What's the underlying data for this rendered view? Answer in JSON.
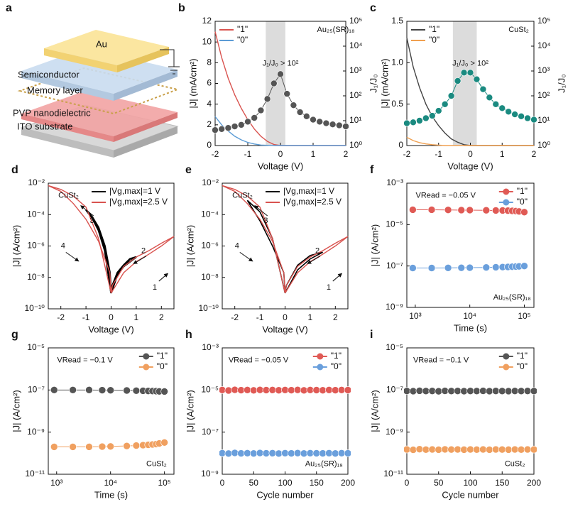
{
  "diagram": {
    "label": "a",
    "layers": [
      "Au",
      "Semiconductor",
      "Memory layer",
      "PVP nanodielectric",
      "ITO substrate"
    ]
  },
  "chart_data": [
    {
      "type": "line",
      "label": "b",
      "xlabel": "Voltage (V)",
      "ylabel": "|J| (mA/cm²)",
      "y2label": "J₁/J₀",
      "x": [
        -2,
        -1.8,
        -1.6,
        -1.4,
        -1.2,
        -1,
        -0.8,
        -0.6,
        -0.4,
        -0.2,
        0,
        0.2,
        0.4,
        0.6,
        0.8,
        1,
        1.2,
        1.4,
        1.6,
        1.8,
        2
      ],
      "xlim": [
        -2,
        2
      ],
      "xticks": [
        -2,
        -1,
        0,
        1,
        2
      ],
      "ylim": [
        0,
        12
      ],
      "yticks": [
        0,
        2,
        4,
        6,
        8,
        10,
        12
      ],
      "y2lim": [
        1,
        100000
      ],
      "y2scale": "log",
      "y2ticks": [
        {
          "value": 1,
          "label": "10⁰"
        },
        {
          "value": 10,
          "label": "10¹"
        },
        {
          "value": 100,
          "label": "10²"
        },
        {
          "value": 1000,
          "label": "10³"
        },
        {
          "value": 10000,
          "label": "10⁴"
        },
        {
          "value": 100000,
          "label": "10⁵"
        }
      ],
      "highlight": [
        -0.45,
        0.15
      ],
      "legend": "upper left",
      "annotations": [
        "J₁/J₀ > 10²",
        "Au₂₅(SR)₁₈"
      ],
      "series": [
        {
          "name": "\"1\"",
          "color": "#d9534f",
          "values": [
            11,
            8.5,
            6.5,
            4.9,
            3.6,
            2.5,
            1.6,
            0.9,
            0.4,
            0.1,
            0,
            0,
            0,
            0,
            0,
            0,
            0,
            0,
            0,
            0,
            0
          ]
        },
        {
          "name": "\"0\"",
          "color": "#5b9bd5",
          "values": [
            2.8,
            2,
            1.4,
            0.9,
            0.55,
            0.3,
            0.15,
            0.05,
            0.02,
            0,
            0,
            0,
            0,
            0,
            0,
            0,
            0,
            0,
            0,
            0,
            0
          ]
        },
        {
          "color": "#555555",
          "marker": true,
          "axis": "y2",
          "values": [
            4.2,
            4.6,
            5.1,
            5.9,
            6.8,
            9.1,
            13,
            26,
            75,
            316,
            750,
            121,
            42,
            22,
            15,
            11,
            9.1,
            7.9,
            7.1,
            6.5,
            5.9
          ]
        }
      ]
    },
    {
      "type": "line",
      "label": "c",
      "xlabel": "Voltage (V)",
      "ylabel": "|J| (mA/cm²)",
      "y2label": "J₁/J₀",
      "x": [
        -2,
        -1.8,
        -1.6,
        -1.4,
        -1.2,
        -1,
        -0.8,
        -0.6,
        -0.4,
        -0.2,
        0,
        0.2,
        0.4,
        0.6,
        0.8,
        1,
        1.2,
        1.4,
        1.6,
        1.8,
        2
      ],
      "xlim": [
        -2,
        2
      ],
      "xticks": [
        -2,
        -1,
        0,
        1,
        2
      ],
      "ylim": [
        0,
        1.5
      ],
      "yticks": [
        0,
        0.5,
        {
          "value": 1,
          "label": "1.0"
        },
        1.5
      ],
      "y2lim": [
        1,
        100000
      ],
      "y2scale": "log",
      "y2ticks": [
        {
          "value": 1,
          "label": "10⁰"
        },
        {
          "value": 10,
          "label": "10¹"
        },
        {
          "value": 100,
          "label": "10²"
        },
        {
          "value": 1000,
          "label": "10³"
        },
        {
          "value": 10000,
          "label": "10⁴"
        },
        {
          "value": 100000,
          "label": "10⁵"
        }
      ],
      "highlight": [
        -0.55,
        0.2
      ],
      "legend": "upper left",
      "annotations": [
        "CuSt₂",
        "J₁/J₀ > 10²"
      ],
      "series": [
        {
          "name": "\"1\"",
          "color": "#444444",
          "values": [
            1.3,
            0.95,
            0.7,
            0.5,
            0.35,
            0.24,
            0.15,
            0.08,
            0.04,
            0.01,
            0,
            0,
            0,
            0,
            0,
            0,
            0,
            0,
            0,
            0,
            0
          ]
        },
        {
          "name": "\"0\"",
          "color": "#f0a050",
          "values": [
            0.1,
            0.06,
            0.035,
            0.02,
            0.01,
            0.005,
            0,
            0,
            0,
            0,
            0,
            0,
            0,
            0,
            0,
            0,
            0,
            0,
            0,
            0,
            0
          ]
        },
        {
          "color": "#1a8a80",
          "marker": true,
          "axis": "y2",
          "values": [
            7.9,
            8.6,
            10,
            12.6,
            15.8,
            25,
            46,
            100,
            398,
            858,
            858,
            464,
            185,
            86,
            46,
            32,
            23,
            18,
            15,
            12.6,
            11
          ]
        }
      ]
    },
    {
      "type": "line",
      "label": "d",
      "xlabel": "Voltage (V)",
      "ylabel": "|J| (A/cm²)",
      "xlim": [
        -2.5,
        2.5
      ],
      "xticks": [
        -2,
        -1,
        0,
        1,
        2
      ],
      "ylim": [
        1e-10,
        0.01
      ],
      "yscale": "log",
      "yticks": [
        {
          "value": 1e-10,
          "label": "10⁻¹⁰"
        },
        {
          "value": 1e-08,
          "label": "10⁻⁸"
        },
        {
          "value": 1e-06,
          "label": "10⁻⁶"
        },
        {
          "value": 0.0001,
          "label": "10⁻⁴"
        },
        {
          "value": 0.01,
          "label": "10⁻²"
        }
      ],
      "legend": "upper right",
      "annotations": [
        "CuSt₂",
        "1",
        "2",
        "3",
        "4"
      ],
      "series": [
        {
          "name": "|Vg,max|=1 V",
          "color": "#000000",
          "width": 2.5,
          "x": [
            0,
            0.25,
            0.5,
            0.75,
            1,
            0.75,
            0.5,
            0.25,
            0.05,
            0,
            -0.25,
            -0.5,
            -0.75,
            -1,
            -0.75,
            -0.5,
            -0.25,
            -0.05,
            0
          ],
          "values": [
            1e-09,
            1.5e-08,
            5e-08,
            1e-07,
            2e-07,
            1.5e-07,
            6e-08,
            2e-08,
            3e-09,
            1e-09,
            5e-07,
            1e-05,
            6e-05,
            0.0002,
            7e-05,
            1.5e-05,
            1e-06,
            2e-08,
            1e-09
          ]
        },
        {
          "name": "|Vg,max|=2.5 V",
          "color": "#d9534f",
          "x": [
            0,
            0.5,
            1,
            1.5,
            2,
            2.5,
            2,
            1.5,
            1,
            0.5,
            0.05,
            0,
            -0.5,
            -1,
            -1.5,
            -2,
            -2.5,
            -2,
            -1.5,
            -1,
            -0.5,
            -0.05,
            0
          ],
          "values": [
            1e-09,
            2e-08,
            1e-07,
            3e-07,
            1e-06,
            4e-06,
            1.5e-06,
            5e-07,
            2e-07,
            5e-08,
            3e-09,
            1e-09,
            3e-06,
            0.0003,
            0.0015,
            0.004,
            0.007,
            0.003,
            0.0005,
            5e-05,
            2e-06,
            2e-08,
            1e-09
          ]
        }
      ]
    },
    {
      "type": "line",
      "label": "e",
      "xlabel": "Voltage (V)",
      "ylabel": "|J| (A/cm²)",
      "xlim": [
        -2.5,
        2.5
      ],
      "xticks": [
        -2,
        -1,
        0,
        1,
        2
      ],
      "ylim": [
        1e-10,
        0.01
      ],
      "yscale": "log",
      "yticks": [
        {
          "value": 1e-10,
          "label": "10⁻¹⁰"
        },
        {
          "value": 1e-08,
          "label": "10⁻⁸"
        },
        {
          "value": 1e-06,
          "label": "10⁻⁶"
        },
        {
          "value": 0.0001,
          "label": "10⁻⁴"
        },
        {
          "value": 0.01,
          "label": "10⁻²"
        }
      ],
      "legend": "upper right",
      "annotations": [
        "CuSt₂",
        "1",
        "2",
        "3",
        "4"
      ],
      "series": [
        {
          "name": "|Vg,max|=1 V",
          "color": "#000000",
          "width": 1.6,
          "x": [
            0,
            0.5,
            1,
            1.5,
            1,
            0.5,
            0.05,
            0,
            -0.5,
            -1,
            -1.5,
            -1,
            -0.5,
            -0.05,
            0
          ],
          "values": [
            1e-09,
            3e-08,
            1.5e-07,
            4e-07,
            2.5e-07,
            6e-08,
            3e-09,
            1e-09,
            3e-06,
            0.00015,
            0.0008,
            4e-05,
            1e-06,
            2e-08,
            1e-09
          ]
        },
        {
          "name": "|Vg,max|=2.5 V",
          "color": "#d9534f",
          "x": [
            0,
            0.5,
            1,
            1.5,
            2,
            2.5,
            2,
            1.5,
            1,
            0.5,
            0.05,
            0,
            -0.5,
            -1,
            -1.5,
            -2,
            -2.5,
            -2,
            -1.5,
            -1,
            -0.5,
            -0.05,
            0
          ],
          "values": [
            1e-09,
            2e-08,
            1e-07,
            3e-07,
            1e-06,
            4e-06,
            1.5e-06,
            5e-07,
            2e-07,
            5e-08,
            3e-09,
            1e-09,
            3e-06,
            0.0003,
            0.0015,
            0.004,
            0.007,
            0.003,
            0.0005,
            5e-05,
            2e-06,
            2e-08,
            1e-09
          ]
        }
      ]
    },
    {
      "type": "line",
      "label": "f",
      "xlabel": "Time (s)",
      "ylabel": "|J| (A/cm²)",
      "xscale": "log",
      "xlim": [
        700,
        150000
      ],
      "xticks": [
        {
          "value": 1000,
          "label": "10³"
        },
        {
          "value": 10000,
          "label": "10⁴"
        },
        {
          "value": 100000,
          "label": "10⁵"
        }
      ],
      "ylim": [
        1e-09,
        0.001
      ],
      "yscale": "log",
      "yticks": [
        {
          "value": 1e-09,
          "label": "10⁻⁹"
        },
        {
          "value": 1e-07,
          "label": "10⁻⁷"
        },
        {
          "value": 1e-05,
          "label": "10⁻⁵"
        },
        {
          "value": 0.001,
          "label": "10⁻³"
        }
      ],
      "legend": "upper right",
      "annotations": [
        "VRead = −0.05 V",
        "Au₂₅(SR)₁₈"
      ],
      "x": [
        900,
        2000,
        4000,
        7000,
        10000,
        20000,
        30000,
        40000,
        50000,
        60000,
        70000,
        80000,
        100000
      ],
      "series": [
        {
          "name": "\"1\"",
          "color": "#e05a55",
          "marker": true,
          "values": [
            5.2e-05,
            5.2e-05,
            5.1e-05,
            5e-05,
            5e-05,
            4.9e-05,
            4.8e-05,
            4.8e-05,
            4.7e-05,
            4.6e-05,
            4.5e-05,
            4.3e-05,
            4e-05
          ]
        },
        {
          "name": "\"0\"",
          "color": "#6a9fdc",
          "marker": true,
          "values": [
            8e-08,
            8e-08,
            8.1e-08,
            8.2e-08,
            8.3e-08,
            8.5e-08,
            8.7e-08,
            8.9e-08,
            9e-08,
            9.2e-08,
            9.4e-08,
            9.6e-08,
            1e-07
          ]
        }
      ]
    },
    {
      "type": "line",
      "label": "g",
      "xlabel": "Time (s)",
      "ylabel": "|J| (A/cm²)",
      "xscale": "log",
      "xlim": [
        700,
        150000
      ],
      "xticks": [
        {
          "value": 1000,
          "label": "10³"
        },
        {
          "value": 10000,
          "label": "10⁴"
        },
        {
          "value": 100000,
          "label": "10⁵"
        }
      ],
      "ylim": [
        1e-11,
        1e-05
      ],
      "yscale": "log",
      "yticks": [
        {
          "value": 1e-11,
          "label": "10⁻¹¹"
        },
        {
          "value": 1e-09,
          "label": "10⁻⁹"
        },
        {
          "value": 1e-07,
          "label": "10⁻⁷"
        },
        {
          "value": 1e-05,
          "label": "10⁻⁵"
        }
      ],
      "legend": "upper right",
      "annotations": [
        "VRead = −0.1 V",
        "CuSt₂"
      ],
      "x": [
        900,
        2000,
        4000,
        7000,
        10000,
        20000,
        30000,
        40000,
        50000,
        60000,
        70000,
        80000,
        100000
      ],
      "series": [
        {
          "name": "\"1\"",
          "color": "#555555",
          "marker": true,
          "values": [
            1e-07,
            1e-07,
            1e-07,
            9.8e-08,
            9.7e-08,
            9.5e-08,
            9.3e-08,
            9.2e-08,
            9e-08,
            8.9e-08,
            8.8e-08,
            8.6e-08,
            8.5e-08
          ]
        },
        {
          "name": "\"0\"",
          "color": "#f0a060",
          "marker": true,
          "values": [
            2e-10,
            2e-10,
            2e-10,
            2.05e-10,
            2.1e-10,
            2.2e-10,
            2.3e-10,
            2.4e-10,
            2.5e-10,
            2.6e-10,
            2.7e-10,
            2.9e-10,
            3.2e-10
          ]
        }
      ]
    },
    {
      "type": "line",
      "label": "h",
      "xlabel": "Cycle number",
      "ylabel": "|J| (A/cm²)",
      "xlim": [
        0,
        200
      ],
      "xticks": [
        0,
        50,
        100,
        150,
        200
      ],
      "ylim": [
        1e-09,
        0.001
      ],
      "yscale": "log",
      "yticks": [
        {
          "value": 1e-09,
          "label": "10⁻⁹"
        },
        {
          "value": 1e-07,
          "label": "10⁻⁷"
        },
        {
          "value": 1e-05,
          "label": "10⁻⁵"
        },
        {
          "value": 0.001,
          "label": "10⁻³"
        }
      ],
      "legend": "upper right",
      "annotations": [
        "VRead = −0.05 V",
        "Au₂₅(SR)₁₈"
      ],
      "x": [
        0,
        10,
        20,
        30,
        40,
        50,
        60,
        70,
        80,
        90,
        100,
        110,
        120,
        130,
        140,
        150,
        160,
        170,
        180,
        190,
        200
      ],
      "series": [
        {
          "name": "\"1\"",
          "color": "#e05a55",
          "marker": true,
          "values": [
            1e-05,
            9.5e-06,
            1.02e-05,
            9.8e-06,
            1e-05,
            9.6e-06,
            1.01e-05,
            9.9e-06,
            1e-05,
            9.7e-06,
            1e-05,
            9.8e-06,
            1.01e-05,
            9.6e-06,
            1e-05,
            9.9e-06,
            9.7e-06,
            1e-05,
            9.8e-06,
            1e-05,
            9.9e-06
          ]
        },
        {
          "name": "\"0\"",
          "color": "#6a9fdc",
          "marker": true,
          "values": [
            1e-08,
            9.6e-09,
            1.03e-08,
            9.8e-09,
            1e-08,
            9.7e-09,
            1.02e-08,
            9.9e-09,
            1e-08,
            9.6e-09,
            1e-08,
            9.8e-09,
            1.01e-08,
            9.7e-09,
            1e-08,
            9.9e-09,
            9.8e-09,
            1e-08,
            9.7e-09,
            1e-08,
            9.9e-09
          ]
        }
      ]
    },
    {
      "type": "line",
      "label": "i",
      "xlabel": "Cycle number",
      "ylabel": "|J| (A/cm²)",
      "xlim": [
        0,
        200
      ],
      "xticks": [
        0,
        50,
        100,
        150,
        200
      ],
      "ylim": [
        1e-11,
        1e-05
      ],
      "yscale": "log",
      "yticks": [
        {
          "value": 1e-11,
          "label": "10⁻¹¹"
        },
        {
          "value": 1e-09,
          "label": "10⁻⁹"
        },
        {
          "value": 1e-07,
          "label": "10⁻⁷"
        },
        {
          "value": 1e-05,
          "label": "10⁻⁵"
        }
      ],
      "legend": "upper right",
      "annotations": [
        "VRead = −0.1 V",
        "CuSt₂"
      ],
      "x": [
        0,
        10,
        20,
        30,
        40,
        50,
        60,
        70,
        80,
        90,
        100,
        110,
        120,
        130,
        140,
        150,
        160,
        170,
        180,
        190,
        200
      ],
      "series": [
        {
          "name": "\"1\"",
          "color": "#555555",
          "marker": true,
          "values": [
            9e-08,
            8.8e-08,
            9.2e-08,
            8.9e-08,
            9e-08,
            8.7e-08,
            9.1e-08,
            8.9e-08,
            9e-08,
            8.8e-08,
            9e-08,
            8.9e-08,
            9.1e-08,
            8.8e-08,
            9e-08,
            8.9e-08,
            8.8e-08,
            9e-08,
            8.9e-08,
            9e-08,
            8.9e-08
          ]
        },
        {
          "name": "\"0\"",
          "color": "#f0a060",
          "marker": true,
          "values": [
            1.5e-10,
            1.45e-10,
            1.55e-10,
            1.48e-10,
            1.5e-10,
            1.46e-10,
            1.52e-10,
            1.49e-10,
            1.5e-10,
            1.47e-10,
            1.5e-10,
            1.48e-10,
            1.51e-10,
            1.46e-10,
            1.5e-10,
            1.49e-10,
            1.47e-10,
            1.5e-10,
            1.48e-10,
            1.5e-10,
            1.49e-10
          ]
        }
      ]
    }
  ]
}
